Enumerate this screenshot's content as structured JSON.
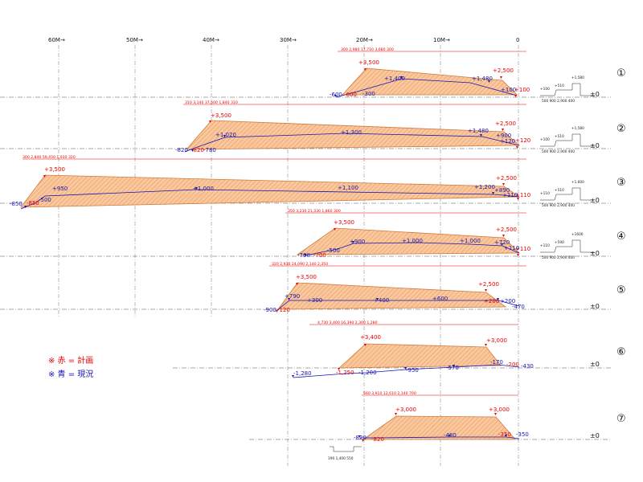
{
  "scale": {
    "labels": [
      "60M→",
      "50M→",
      "40M→",
      "30M→",
      "20M→",
      "10M→",
      "0"
    ]
  },
  "section_numbers": [
    "①",
    "②",
    "③",
    "④",
    "⑤",
    "⑥",
    "⑦"
  ],
  "zero_label": "±0",
  "legend": {
    "plan": "※ 赤 = 計画",
    "existing": "※ 青 = 現況"
  },
  "colors": {
    "plan": "#e60000",
    "existing": "#1414b4",
    "fill": "#f9c89e"
  },
  "sections": [
    {
      "dims": "300   2,980          17,710          3,680 300",
      "plan_labels": [
        "+3,500",
        "+2,500",
        "-600",
        "+100"
      ],
      "exist_labels": [
        "-600",
        "-300",
        "+1,400",
        "+1,480",
        "+100"
      ]
    },
    {
      "dims": "310   3,140                37,500                1,840 310",
      "plan_labels": [
        "+3,500",
        "+2,500",
        "-820",
        "+120"
      ],
      "exist_labels": [
        "-820",
        "-780",
        "+1,020",
        "+1,300",
        "+1,480",
        "+900",
        "+120"
      ]
    },
    {
      "dims": "300   2,840                          59,450                          1,930 320",
      "plan_labels": [
        "+3,500",
        "+2,500",
        "-850",
        "+110"
      ],
      "exist_labels": [
        "-850",
        "-500",
        "+950",
        "+1,000",
        "+1,100",
        "+1,200",
        "+890",
        "+110"
      ]
    },
    {
      "dims": "350   3,230          21,330          1,860 300",
      "plan_labels": [
        "+3,500",
        "+2,500",
        "-700",
        "+110"
      ],
      "exist_labels": [
        "-700",
        "-500",
        "+900",
        "+1,000",
        "+1,000",
        "+720",
        "+110"
      ]
    },
    {
      "dims": "320   2,930          24,090          2,140  2,350",
      "plan_labels": [
        "+3,500",
        "+2,500",
        "-120",
        "+200"
      ],
      "exist_labels": [
        "-900",
        "+790",
        "+300",
        "+400",
        "+600",
        "+200",
        "-470"
      ]
    },
    {
      "dims": "4,730    3,400          16,390          2,300 1,280",
      "plan_labels": [
        "+3,400",
        "+3,000",
        "-1,250",
        "-200"
      ],
      "exist_labels": [
        "-1,280",
        "-1,200",
        "-950",
        "-570",
        "-170",
        "-430"
      ]
    },
    {
      "dims": "560  3,910       12,610       2,140  700",
      "plan_labels": [
        "+3,000",
        "+3,000",
        "-820",
        "-350"
      ],
      "exist_labels": [
        "-820",
        "-480",
        "-350"
      ]
    }
  ],
  "road_details": [
    {
      "a": "+100",
      "b": "+510",
      "c": "+1,580",
      "dims": "500 900    2,900    400"
    },
    {
      "a": "+100",
      "b": "+510",
      "c": "+1,580",
      "dims": "500 900    2,900    400"
    },
    {
      "a": "+110",
      "b": "+510",
      "c": "+1,600",
      "dims": "500 900    2,900    400"
    },
    {
      "a": "+110",
      "b": "+590",
      "c": "+1600",
      "dims": "500 900    2,900    400"
    },
    {
      "dims": "190   1,400   550"
    }
  ]
}
